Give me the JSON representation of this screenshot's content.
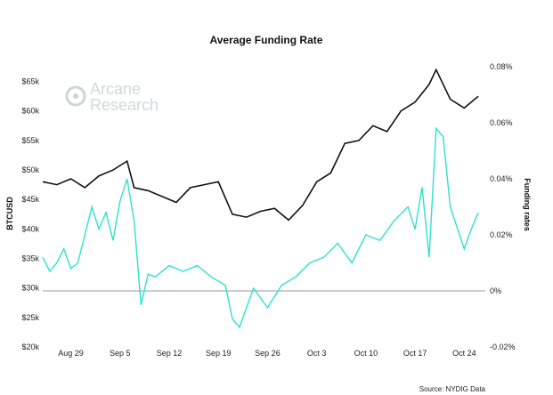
{
  "chart_data": {
    "type": "line",
    "title": "Average Funding Rate",
    "y_left_label": "BTCUSD",
    "y_right_label": "Funding rates",
    "source": "Source: NYDIG Data",
    "watermark": [
      "Arcane",
      "Research"
    ],
    "x_tick_labels": [
      "Aug 29",
      "Sep 5",
      "Sep 12",
      "Sep 19",
      "Sep 26",
      "Oct 3",
      "Oct 10",
      "Oct 17",
      "Oct 24"
    ],
    "y_left_ticks": [
      "$20k",
      "$25k",
      "$30k",
      "$35k",
      "$40k",
      "$45k",
      "$50k",
      "$55k",
      "$60k",
      "$65k"
    ],
    "y_left_values": [
      20000,
      25000,
      30000,
      35000,
      40000,
      45000,
      50000,
      55000,
      60000,
      65000
    ],
    "ylim_left": [
      20000,
      67500
    ],
    "y_right_ticks": [
      "-0.02%",
      "0%",
      "0.02%",
      "0.04%",
      "0.06%",
      "0.08%"
    ],
    "y_right_values": [
      -0.02,
      0,
      0.02,
      0.04,
      0.06,
      0.08
    ],
    "ylim_right": [
      -0.02,
      0.08
    ],
    "colors": {
      "btc": "#111111",
      "funding": "#2fe0d2",
      "zero_line": "#9a9a9a"
    },
    "series": [
      {
        "key": "btc",
        "x": [
          "2021-08-25",
          "2021-08-27",
          "2021-08-29",
          "2021-08-31",
          "2021-09-02",
          "2021-09-04",
          "2021-09-06",
          "2021-09-07",
          "2021-09-09",
          "2021-09-11",
          "2021-09-13",
          "2021-09-15",
          "2021-09-17",
          "2021-09-19",
          "2021-09-21",
          "2021-09-23",
          "2021-09-25",
          "2021-09-27",
          "2021-09-29",
          "2021-10-01",
          "2021-10-03",
          "2021-10-05",
          "2021-10-07",
          "2021-10-09",
          "2021-10-11",
          "2021-10-13",
          "2021-10-15",
          "2021-10-17",
          "2021-10-19",
          "2021-10-20",
          "2021-10-22",
          "2021-10-24",
          "2021-10-26"
        ],
        "values": [
          48000,
          47500,
          48500,
          47000,
          49000,
          50000,
          51500,
          47000,
          46500,
          45500,
          44500,
          47000,
          47500,
          48000,
          42500,
          42000,
          43000,
          43500,
          41500,
          44000,
          48000,
          49500,
          54500,
          55000,
          57500,
          56500,
          60000,
          61500,
          64500,
          67000,
          62000,
          60500,
          62500
        ]
      },
      {
        "key": "funding",
        "x": [
          "2021-08-25",
          "2021-08-26",
          "2021-08-27",
          "2021-08-28",
          "2021-08-29",
          "2021-08-30",
          "2021-08-31",
          "2021-09-01",
          "2021-09-02",
          "2021-09-03",
          "2021-09-04",
          "2021-09-05",
          "2021-09-06",
          "2021-09-07",
          "2021-09-08",
          "2021-09-09",
          "2021-09-10",
          "2021-09-12",
          "2021-09-14",
          "2021-09-16",
          "2021-09-18",
          "2021-09-20",
          "2021-09-21",
          "2021-09-22",
          "2021-09-24",
          "2021-09-26",
          "2021-09-28",
          "2021-09-30",
          "2021-10-02",
          "2021-10-04",
          "2021-10-06",
          "2021-10-08",
          "2021-10-10",
          "2021-10-12",
          "2021-10-14",
          "2021-10-16",
          "2021-10-17",
          "2021-10-18",
          "2021-10-19",
          "2021-10-20",
          "2021-10-21",
          "2021-10-22",
          "2021-10-24",
          "2021-10-25",
          "2021-10-26"
        ],
        "values": [
          0.012,
          0.007,
          0.01,
          0.015,
          0.008,
          0.01,
          0.02,
          0.03,
          0.022,
          0.028,
          0.018,
          0.032,
          0.04,
          0.025,
          -0.005,
          0.006,
          0.005,
          0.009,
          0.007,
          0.009,
          0.005,
          0.002,
          -0.01,
          -0.013,
          0.001,
          -0.006,
          0.002,
          0.005,
          0.01,
          0.012,
          0.017,
          0.01,
          0.02,
          0.018,
          0.025,
          0.03,
          0.022,
          0.037,
          0.012,
          0.058,
          0.055,
          0.03,
          0.015,
          0.022,
          0.028
        ]
      }
    ]
  }
}
